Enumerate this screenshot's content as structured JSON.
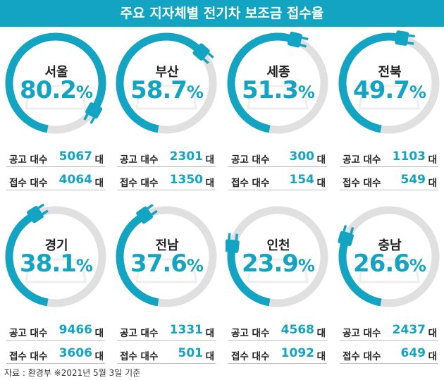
{
  "title": "주요 지자체별 전기차 보조금 접수율",
  "source": "자료 : 환경부 ※2021년 5월 3일 기준",
  "labels": {
    "notice": "공고 대수",
    "applied": "접수 대수",
    "unit": "대",
    "percent": "%"
  },
  "colors": {
    "accent": "#12a4c2",
    "track": "#e0e0e0",
    "header": "#12a4c2"
  },
  "chart_data": {
    "type": "gauge",
    "title": "주요 지자체별 전기차 보조금 접수율",
    "unit": "%",
    "items": [
      {
        "region": "서울",
        "rate": "80.2",
        "rate_value": 80.2,
        "notice": "5067",
        "applied": "4064"
      },
      {
        "region": "부산",
        "rate": "58.7",
        "rate_value": 58.7,
        "notice": "2301",
        "applied": "1350"
      },
      {
        "region": "세종",
        "rate": "51.3",
        "rate_value": 51.3,
        "notice": "300",
        "applied": "154"
      },
      {
        "region": "전북",
        "rate": "49.7",
        "rate_value": 49.7,
        "notice": "1103",
        "applied": "549"
      },
      {
        "region": "경기",
        "rate": "38.1",
        "rate_value": 38.1,
        "notice": "9466",
        "applied": "3606"
      },
      {
        "region": "전남",
        "rate": "37.6",
        "rate_value": 37.6,
        "notice": "1331",
        "applied": "501"
      },
      {
        "region": "인천",
        "rate": "23.9",
        "rate_value": 23.9,
        "notice": "4568",
        "applied": "1092"
      },
      {
        "region": "충남",
        "rate": "26.6",
        "rate_value": 26.6,
        "notice": "2437",
        "applied": "649"
      }
    ]
  }
}
